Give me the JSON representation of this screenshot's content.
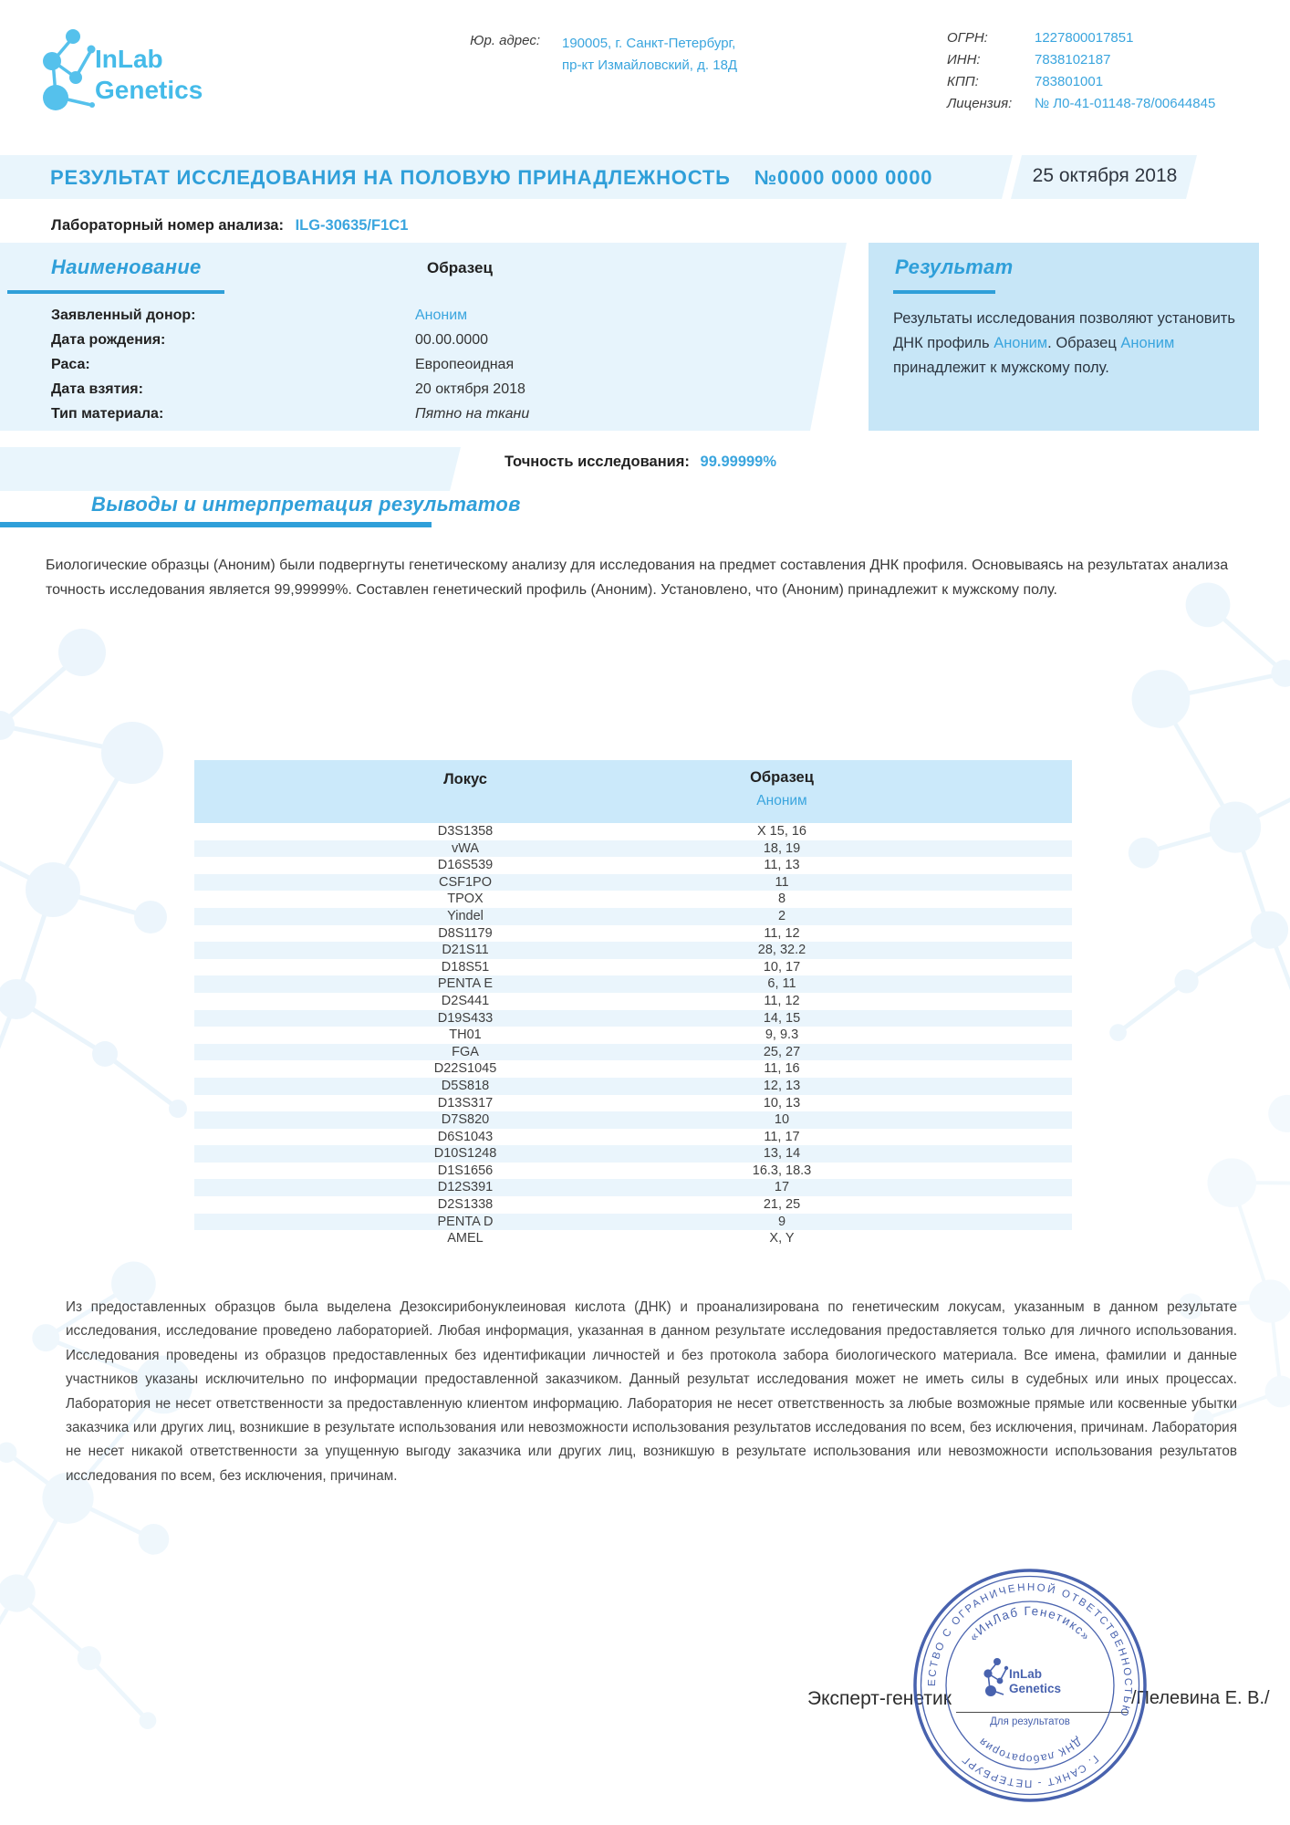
{
  "colors": {
    "accent": "#3aa5de",
    "title_blue": "#2f9fd9",
    "band": "#e9f5fc",
    "panel_dark": "#c7e6f7",
    "table_header": "#cbe9fa",
    "table_stripe": "#eaf5fc",
    "logo_blue": "#4fc0ec",
    "stamp_blue": "#3b57a8"
  },
  "header": {
    "logo": {
      "line1": "InLab",
      "line2": "Genetics"
    },
    "address_label": "Юр. адрес:",
    "address_line1": "190005, г. Санкт-Петербург,",
    "address_line2": "пр-кт Измайловский, д. 18Д",
    "registration": [
      {
        "label": "ОГРН:",
        "value": "1227800017851"
      },
      {
        "label": "ИНН:",
        "value": "7838102187"
      },
      {
        "label": "КПП:",
        "value": "783801001"
      },
      {
        "label": "Лицензия:",
        "value": "№ Л0-41-01148-78/00644845"
      }
    ]
  },
  "title_bar": {
    "title": "РЕЗУЛЬТАТ ИССЛЕДОВАНИЯ НА  ПОЛОВУЮ ПРИНАДЛЕЖНОСТЬ",
    "number": "№0000 0000 0000",
    "date": "25 октября 2018"
  },
  "lab_number": {
    "label": "Лабораторный номер анализа:",
    "value": "ILG-30635/F1C1"
  },
  "sample_panel": {
    "heading": "Наименование",
    "column_heading": "Образец",
    "rows": [
      {
        "label": "Заявленный донор:",
        "value": "Аноним",
        "accent": true,
        "italic": false
      },
      {
        "label": "Дата рождения:",
        "value": "00.00.0000",
        "accent": false,
        "italic": false
      },
      {
        "label": "Раса:",
        "value": "Европеоидная",
        "accent": false,
        "italic": false
      },
      {
        "label": "Дата взятия:",
        "value": "20 октября 2018",
        "accent": false,
        "italic": false
      },
      {
        "label": "Тип материала:",
        "value": "Пятно на ткани",
        "accent": false,
        "italic": true
      }
    ]
  },
  "result_panel": {
    "heading": "Результат",
    "parts": [
      {
        "text": "Результаты исследования позволяют установить ДНК профиль ",
        "accent": false
      },
      {
        "text": "Аноним",
        "accent": true
      },
      {
        "text": ". Образец ",
        "accent": false
      },
      {
        "text": "Аноним",
        "accent": true
      },
      {
        "text": " принадлежит к мужскому полу.",
        "accent": false
      }
    ]
  },
  "accuracy": {
    "label": "Точность исследования:",
    "value": "99.99999%"
  },
  "conclusions": {
    "heading": "Выводы и интерпретация результатов",
    "paragraph": "Биологические образцы (Аноним) были подвергнуты генетическому анализу для исследования на предмет составления ДНК профиля. Основываясь на результатах анализа точность исследования является 99,99999%. Составлен генетический профиль (Аноним). Установлено, что (Аноним) принадлежит к мужскому полу."
  },
  "loci_table": {
    "col1": "Локус",
    "col2": "Образец",
    "col2_sub": "Аноним",
    "rows": [
      [
        "D3S1358",
        "X 15, 16"
      ],
      [
        "vWA",
        "18, 19"
      ],
      [
        "D16S539",
        "11, 13"
      ],
      [
        "CSF1PO",
        "11"
      ],
      [
        "TPOX",
        "8"
      ],
      [
        "Yindel",
        "2"
      ],
      [
        "D8S1179",
        "11, 12"
      ],
      [
        "D21S11",
        "28, 32.2"
      ],
      [
        "D18S51",
        "10, 17"
      ],
      [
        "PENTA E",
        "6, 11"
      ],
      [
        "D2S441",
        "11, 12"
      ],
      [
        "D19S433",
        "14, 15"
      ],
      [
        "TH01",
        "9, 9.3"
      ],
      [
        "FGA",
        "25, 27"
      ],
      [
        "D22S1045",
        "11, 16"
      ],
      [
        "D5S818",
        "12, 13"
      ],
      [
        "D13S317",
        "10, 13"
      ],
      [
        "D7S820",
        "10"
      ],
      [
        "D6S1043",
        "11, 17"
      ],
      [
        "D10S1248",
        "13, 14"
      ],
      [
        "D1S1656",
        "16.3, 18.3"
      ],
      [
        "D12S391",
        "17"
      ],
      [
        "D2S1338",
        "21, 25"
      ],
      [
        "PENTA D",
        "9"
      ],
      [
        "AMEL",
        "X, Y"
      ]
    ]
  },
  "disclaimer": "Из предоставленных образцов была выделена Дезоксирибонуклеиновая кислота (ДНК) и проанализирована по генетическим локусам, указанным в данном результате исследования, исследование проведено лабораторией. Любая информация, указанная в данном результате исследования предоставляется только для личного использования. Исследования проведены из образцов предоставленных без идентификации личностей и без протокола забора биологического материала.  Все имена, фамилии и данные участников указаны исключительно по информации предоставленной заказчиком. Данный результат исследования может не иметь силы в судебных или иных процессах. Лаборатория не несет ответственности за предоставленную клиентом информацию. Лаборатория не несет ответственность за любые возможные прямые или косвенные убытки заказчика или других лиц, возникшие в результате использования или невозможности использования результатов исследования по всем, без исключения, причинам.  Лаборатория не несет никакой ответственности за упущенную выгоду заказчика или других лиц, возникшую в результате использования или невозможности использования результатов исследования по всем, без исключения, причинам.",
  "signature": {
    "role": "Эксперт-генетик",
    "name": "/Пелевина Е. В./"
  },
  "stamp": {
    "outer_top": "ОБЩЕСТВО С ОГРАНИЧЕННОЙ ОТВЕТСТВЕННОСТЬЮ",
    "outer_bottom": "Г. САНКТ - ПЕТЕРБУРГ",
    "inner_top": "«ИнЛаб Генетикс»",
    "inner_bottom": "ДНК лаборатория",
    "center_line1": "InLab",
    "center_line2": "Genetics",
    "center_caption": "Для результатов"
  }
}
